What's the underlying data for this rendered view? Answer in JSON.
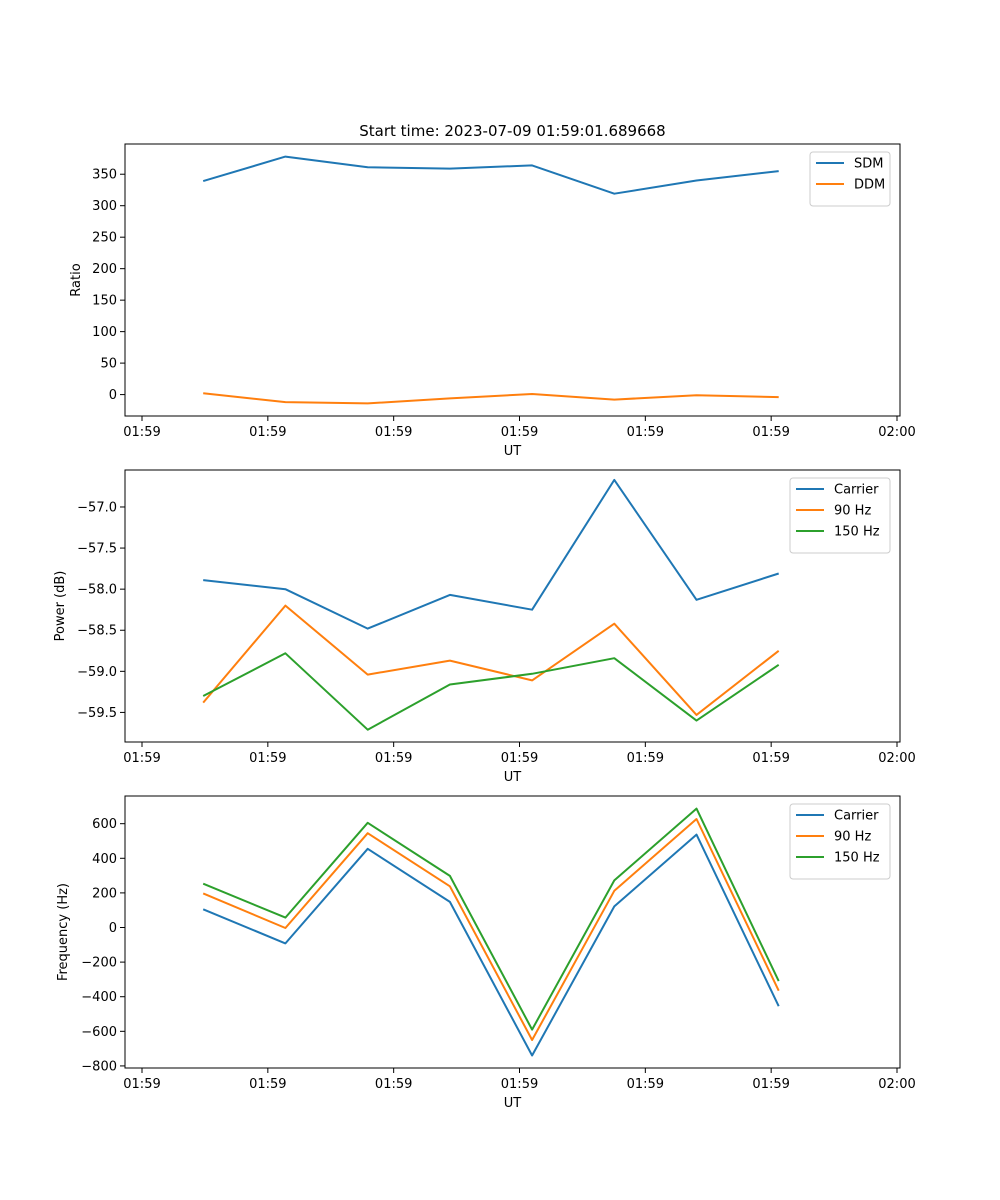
{
  "title": "Start time: 2023-07-09 01:59:01.689668",
  "colors": {
    "blue": "#1f77b4",
    "orange": "#ff7f0e",
    "green": "#2ca02c"
  },
  "chart_data": [
    {
      "id": "ratio",
      "type": "line",
      "xlabel": "UT",
      "ylabel": "Ratio",
      "xlim": [
        0,
        9
      ],
      "x_ticks": [
        0,
        1.5,
        3,
        4.5,
        6,
        7.5,
        9
      ],
      "x_tick_labels": [
        "01:59",
        "01:59",
        "01:59",
        "01:59",
        "01:59",
        "01:59",
        "02:00"
      ],
      "ylim": [
        -34,
        398
      ],
      "y_ticks": [
        0,
        50,
        100,
        150,
        200,
        250,
        300,
        350
      ],
      "y_tick_labels": [
        "0",
        "50",
        "100",
        "150",
        "200",
        "250",
        "300",
        "350"
      ],
      "x": [
        0.73,
        1.71,
        2.69,
        3.67,
        4.65,
        5.63,
        6.61,
        7.59
      ],
      "series": [
        {
          "name": "SDM",
          "color": "#1f77b4",
          "values": [
            339,
            378,
            361,
            359,
            364,
            319,
            340,
            355
          ]
        },
        {
          "name": "DDM",
          "color": "#ff7f0e",
          "values": [
            2,
            -12,
            -14,
            -6,
            1,
            -8,
            -1,
            -4
          ]
        }
      ],
      "legend": "upper right"
    },
    {
      "id": "power",
      "type": "line",
      "xlabel": "UT",
      "ylabel": "Power (dB)",
      "xlim": [
        0,
        9
      ],
      "x_ticks": [
        0,
        1.5,
        3,
        4.5,
        6,
        7.5,
        9
      ],
      "x_tick_labels": [
        "01:59",
        "01:59",
        "01:59",
        "01:59",
        "01:59",
        "01:59",
        "02:00"
      ],
      "ylim": [
        -59.86,
        -56.55
      ],
      "y_ticks": [
        -59.5,
        -59.0,
        -58.5,
        -58.0,
        -57.5,
        -57.0
      ],
      "y_tick_labels": [
        "−59.5",
        "−59.0",
        "−58.5",
        "−58.0",
        "−57.5",
        "−57.0"
      ],
      "x": [
        0.73,
        1.71,
        2.69,
        3.67,
        4.65,
        5.63,
        6.61,
        7.59
      ],
      "series": [
        {
          "name": "Carrier",
          "color": "#1f77b4",
          "values": [
            -57.89,
            -58.0,
            -58.48,
            -58.07,
            -58.25,
            -56.67,
            -58.13,
            -57.81
          ]
        },
        {
          "name": "90 Hz",
          "color": "#ff7f0e",
          "values": [
            -59.38,
            -58.2,
            -59.04,
            -58.87,
            -59.11,
            -58.42,
            -59.53,
            -58.75
          ]
        },
        {
          "name": "150 Hz",
          "color": "#2ca02c",
          "values": [
            -59.3,
            -58.78,
            -59.71,
            -59.16,
            -59.03,
            -58.84,
            -59.6,
            -58.92
          ]
        }
      ],
      "legend": "upper right"
    },
    {
      "id": "frequency",
      "type": "line",
      "xlabel": "UT",
      "ylabel": "Frequency (Hz)",
      "xlim": [
        0,
        9
      ],
      "x_ticks": [
        0,
        1.5,
        3,
        4.5,
        6,
        7.5,
        9
      ],
      "x_tick_labels": [
        "01:59",
        "01:59",
        "01:59",
        "01:59",
        "01:59",
        "01:59",
        "02:00"
      ],
      "ylim": [
        -812,
        760
      ],
      "y_ticks": [
        -800,
        -600,
        -400,
        -200,
        0,
        200,
        400,
        600
      ],
      "y_tick_labels": [
        "−800",
        "−600",
        "−400",
        "−200",
        "0",
        "200",
        "400",
        "600"
      ],
      "x": [
        0.73,
        1.71,
        2.69,
        3.67,
        4.65,
        5.63,
        6.61,
        7.59
      ],
      "series": [
        {
          "name": "Carrier",
          "color": "#1f77b4",
          "values": [
            105,
            -92,
            455,
            148,
            -740,
            122,
            537,
            -455
          ]
        },
        {
          "name": "90 Hz",
          "color": "#ff7f0e",
          "values": [
            197,
            -3,
            545,
            238,
            -650,
            212,
            627,
            -365
          ]
        },
        {
          "name": "150 Hz",
          "color": "#2ca02c",
          "values": [
            253,
            57,
            605,
            298,
            -590,
            272,
            687,
            -310
          ]
        }
      ],
      "legend": "upper right"
    }
  ]
}
